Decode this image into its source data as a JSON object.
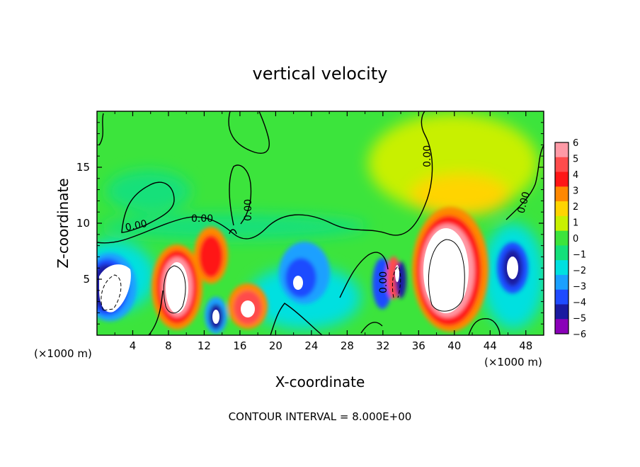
{
  "chart_data": {
    "type": "heatmap",
    "title": "vertical velocity",
    "xlabel": "X-coordinate",
    "ylabel": "Z-coordinate",
    "x_unit_left": "(×1000 m)",
    "x_unit_right": "(×1000 m)",
    "footer": "CONTOUR INTERVAL = 8.000E+00",
    "xlim": [
      0,
      50
    ],
    "ylim": [
      0,
      20
    ],
    "x_ticks": [
      "4",
      "8",
      "12",
      "16",
      "20",
      "24",
      "28",
      "32",
      "36",
      "40",
      "44",
      "48"
    ],
    "y_ticks": [
      "5",
      "10",
      "15"
    ],
    "contour_labels": [
      "0.00",
      "0.00",
      "0.00",
      "0.00",
      "0.00",
      "0.00",
      "0.00"
    ],
    "colorbar": {
      "labels": [
        "6",
        "5",
        "4",
        "3",
        "2",
        "1",
        "0",
        "−1",
        "−2",
        "−3",
        "−4",
        "−5",
        "−6"
      ],
      "colors": [
        "#ff9aa6",
        "#ff4c4c",
        "#ff1616",
        "#ff8800",
        "#ffd400",
        "#c8f000",
        "#3ce43c",
        "#14e07a",
        "#00e0e0",
        "#1aa0ff",
        "#1f4bff",
        "#1a1aa0",
        "#8a00b8"
      ]
    },
    "features": [
      {
        "name": "downdraft",
        "x": 1.5,
        "z": 4.5,
        "w": -6
      },
      {
        "name": "updraft",
        "x": 9,
        "z": 4.5,
        "w": 6
      },
      {
        "name": "updraft",
        "x": 12.3,
        "z": 6.8,
        "w": 5
      },
      {
        "name": "downdraft",
        "x": 13.3,
        "z": 2,
        "w": -6
      },
      {
        "name": "updraft",
        "x": 17.3,
        "z": 2.4,
        "w": 6
      },
      {
        "name": "downdraft",
        "x": 22.5,
        "z": 5,
        "w": -6
      },
      {
        "name": "downdraft",
        "x": 32,
        "z": 5,
        "w": -5
      },
      {
        "name": "updraft",
        "x": 33.8,
        "z": 5.5,
        "w": 5
      },
      {
        "name": "updraft",
        "x": 39.5,
        "z": 6,
        "w": 6
      },
      {
        "name": "downdraft",
        "x": 46.7,
        "z": 5.9,
        "w": -6
      }
    ]
  }
}
